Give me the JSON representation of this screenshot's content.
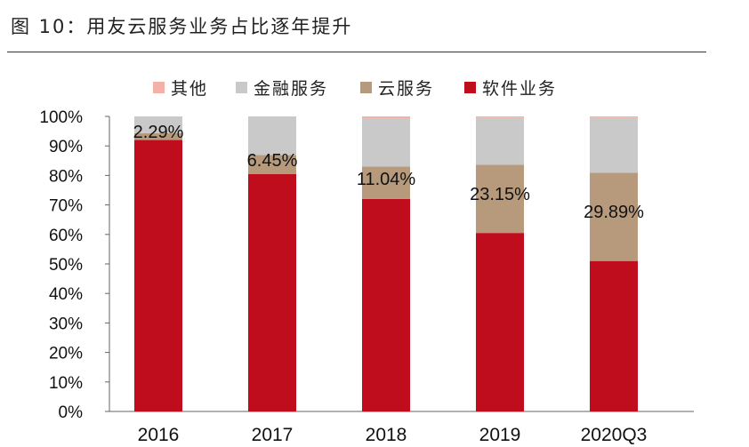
{
  "title": "图 10：用友云服务业务占比逐年提升",
  "chart_data": {
    "type": "bar",
    "stacked": true,
    "categories": [
      "2016",
      "2017",
      "2018",
      "2019",
      "2020Q3"
    ],
    "series": [
      {
        "name": "软件业务",
        "color": "#c00d1e",
        "values": [
          92.0,
          80.5,
          72.0,
          60.5,
          51.0
        ]
      },
      {
        "name": "云服务",
        "color": "#b79a7c",
        "values": [
          2.29,
          6.45,
          11.04,
          23.15,
          29.89
        ]
      },
      {
        "name": "金融服务",
        "color": "#c9c9c9",
        "values": [
          5.71,
          13.05,
          16.36,
          15.85,
          18.61
        ]
      },
      {
        "name": "其他",
        "color": "#f2b2a8",
        "values": [
          0,
          0,
          0.6,
          0.5,
          0.5
        ]
      }
    ],
    "legend_order": [
      "其他",
      "金融服务",
      "云服务",
      "软件业务"
    ],
    "data_labels": [
      "2.29%",
      "6.45%",
      "11.04%",
      "23.15%",
      "29.89%"
    ],
    "yticks": [
      "0%",
      "10%",
      "20%",
      "30%",
      "40%",
      "50%",
      "60%",
      "70%",
      "80%",
      "90%",
      "100%"
    ],
    "ylim": [
      0,
      100
    ],
    "grid": false,
    "legend_position": "top"
  }
}
